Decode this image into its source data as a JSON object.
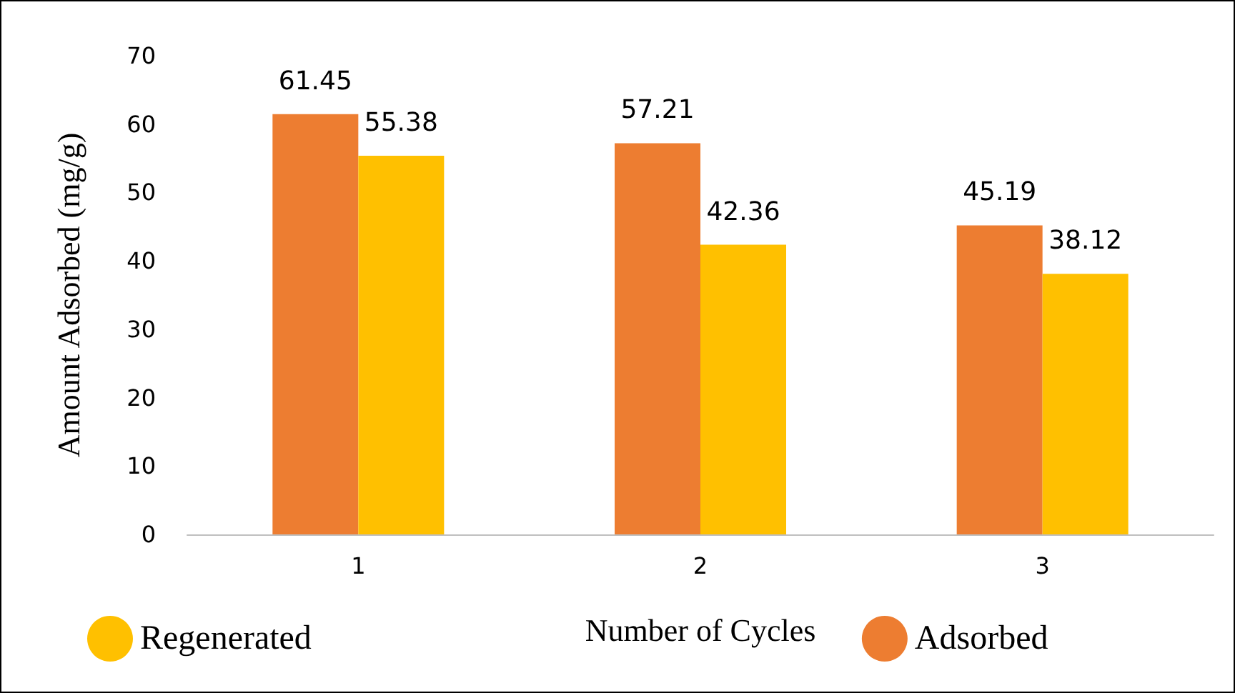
{
  "chart_data": {
    "type": "bar",
    "xlabel": "Number of Cycles",
    "ylabel": "Amount Adsorbed (mg/g)",
    "categories": [
      "1",
      "2",
      "3"
    ],
    "series": [
      {
        "name": "Adsorbed",
        "color": "#ed7d31",
        "values": [
          61.45,
          57.21,
          45.19
        ]
      },
      {
        "name": "Regenerated",
        "color": "#ffc000",
        "values": [
          55.38,
          42.36,
          38.12
        ]
      }
    ],
    "ylim": [
      0,
      70
    ],
    "yticks": [
      0,
      10,
      20,
      30,
      40,
      50,
      60,
      70
    ],
    "grid": false,
    "legend": "bottom",
    "data_labels": true,
    "marker": "circle"
  }
}
